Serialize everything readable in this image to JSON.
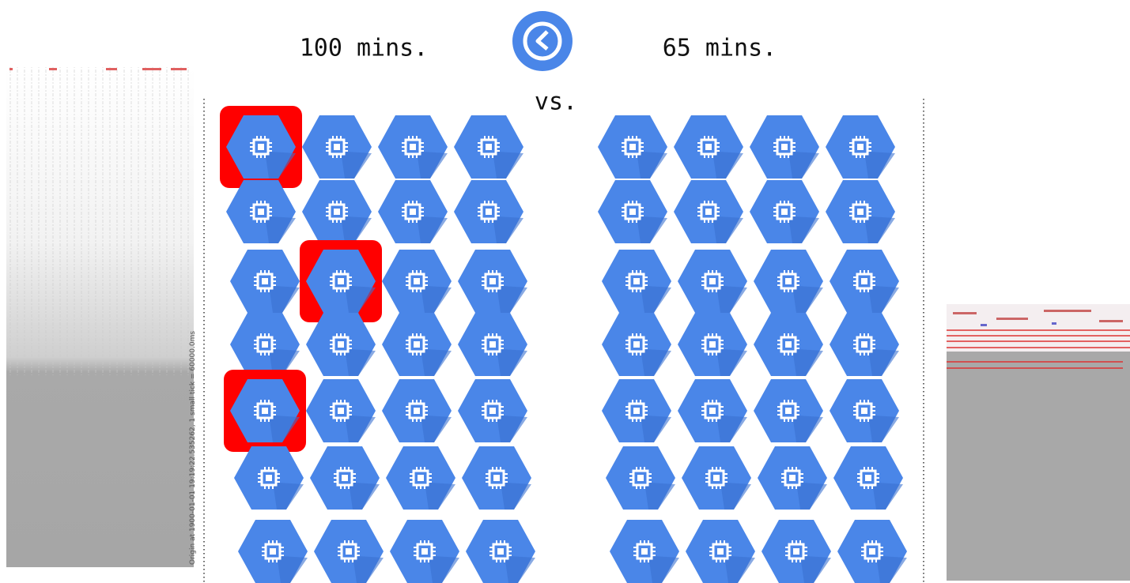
{
  "left_label": "100 mins.",
  "right_label": "65 mins.",
  "vs_label": "vs.",
  "left_trace_caption": "Origin at 1900-01-01 19:19:22.535262, 1 small tick = 60000.0ms"
}
